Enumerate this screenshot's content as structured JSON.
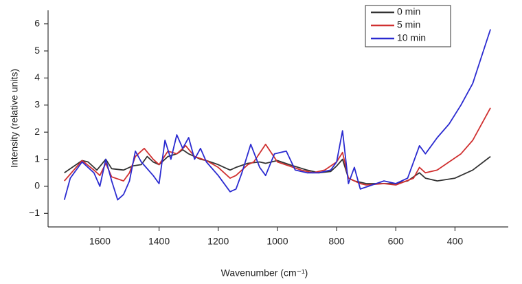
{
  "chart_data": {
    "type": "line",
    "x_label": "Wavenumber (cm⁻¹)",
    "y_label": "Intensity (relative units)",
    "xlim": [
      1775,
      220
    ],
    "xticks": [
      1600,
      1400,
      1200,
      1000,
      800,
      600,
      400
    ],
    "ylim": [
      -1.5,
      6.5
    ],
    "yticks": [
      {
        "value": -1,
        "label": "−1"
      },
      0,
      1,
      2,
      3,
      4,
      5,
      6
    ],
    "legend": "top-right",
    "series": [
      {
        "name": "0 min",
        "color": "#333333",
        "x": [
          1720,
          1660,
          1640,
          1610,
          1580,
          1560,
          1520,
          1490,
          1460,
          1440,
          1420,
          1400,
          1370,
          1340,
          1320,
          1300,
          1260,
          1240,
          1200,
          1180,
          1160,
          1140,
          1100,
          1060,
          1040,
          1000,
          960,
          900,
          860,
          820,
          800,
          780,
          760,
          740,
          720,
          700,
          600,
          560,
          520,
          500,
          460,
          400,
          340,
          280
        ],
        "values": [
          0.5,
          0.95,
          0.9,
          0.6,
          1.0,
          0.65,
          0.6,
          0.75,
          0.8,
          1.1,
          0.9,
          0.8,
          1.1,
          1.2,
          1.35,
          1.2,
          1.0,
          0.95,
          0.8,
          0.7,
          0.6,
          0.7,
          0.85,
          0.9,
          0.85,
          0.95,
          0.8,
          0.6,
          0.5,
          0.55,
          0.75,
          1.0,
          0.3,
          0.2,
          0.15,
          0.1,
          0.1,
          0.2,
          0.5,
          0.3,
          0.2,
          0.3,
          0.6,
          1.1
        ]
      },
      {
        "name": "5 min",
        "color": "#d03030",
        "x": [
          1720,
          1660,
          1620,
          1600,
          1580,
          1560,
          1520,
          1500,
          1480,
          1450,
          1420,
          1400,
          1370,
          1340,
          1310,
          1280,
          1240,
          1200,
          1160,
          1140,
          1100,
          1080,
          1040,
          1000,
          960,
          920,
          880,
          840,
          800,
          780,
          760,
          720,
          700,
          640,
          600,
          540,
          520,
          500,
          460,
          420,
          380,
          340,
          310,
          280
        ],
        "values": [
          0.2,
          0.95,
          0.6,
          0.4,
          0.85,
          0.35,
          0.2,
          0.5,
          1.1,
          1.4,
          1.0,
          0.8,
          1.3,
          1.2,
          1.5,
          1.1,
          0.95,
          0.7,
          0.3,
          0.4,
          0.8,
          0.9,
          1.55,
          0.9,
          0.75,
          0.6,
          0.5,
          0.6,
          0.9,
          1.25,
          0.3,
          0.1,
          0.05,
          0.1,
          0.05,
          0.3,
          0.7,
          0.5,
          0.6,
          0.9,
          1.2,
          1.7,
          2.3,
          2.9
        ]
      },
      {
        "name": "10 min",
        "color": "#2a2ad0",
        "x": [
          1720,
          1700,
          1660,
          1620,
          1600,
          1580,
          1560,
          1540,
          1520,
          1500,
          1480,
          1460,
          1420,
          1400,
          1380,
          1360,
          1340,
          1320,
          1300,
          1280,
          1260,
          1240,
          1200,
          1160,
          1140,
          1120,
          1090,
          1060,
          1040,
          1010,
          970,
          940,
          900,
          860,
          820,
          800,
          780,
          760,
          740,
          720,
          680,
          640,
          600,
          560,
          520,
          500,
          460,
          420,
          380,
          340,
          310,
          280
        ],
        "values": [
          -0.5,
          0.3,
          0.9,
          0.5,
          0.0,
          1.0,
          0.2,
          -0.5,
          -0.3,
          0.2,
          1.3,
          0.9,
          0.4,
          0.1,
          1.7,
          1.0,
          1.9,
          1.4,
          1.8,
          1.0,
          1.4,
          0.9,
          0.4,
          -0.2,
          -0.1,
          0.5,
          1.55,
          0.7,
          0.4,
          1.2,
          1.3,
          0.6,
          0.5,
          0.5,
          0.6,
          0.9,
          2.05,
          0.1,
          0.7,
          -0.1,
          0.05,
          0.2,
          0.1,
          0.3,
          1.5,
          1.2,
          1.8,
          2.3,
          3.0,
          3.8,
          4.8,
          5.8
        ]
      }
    ]
  }
}
